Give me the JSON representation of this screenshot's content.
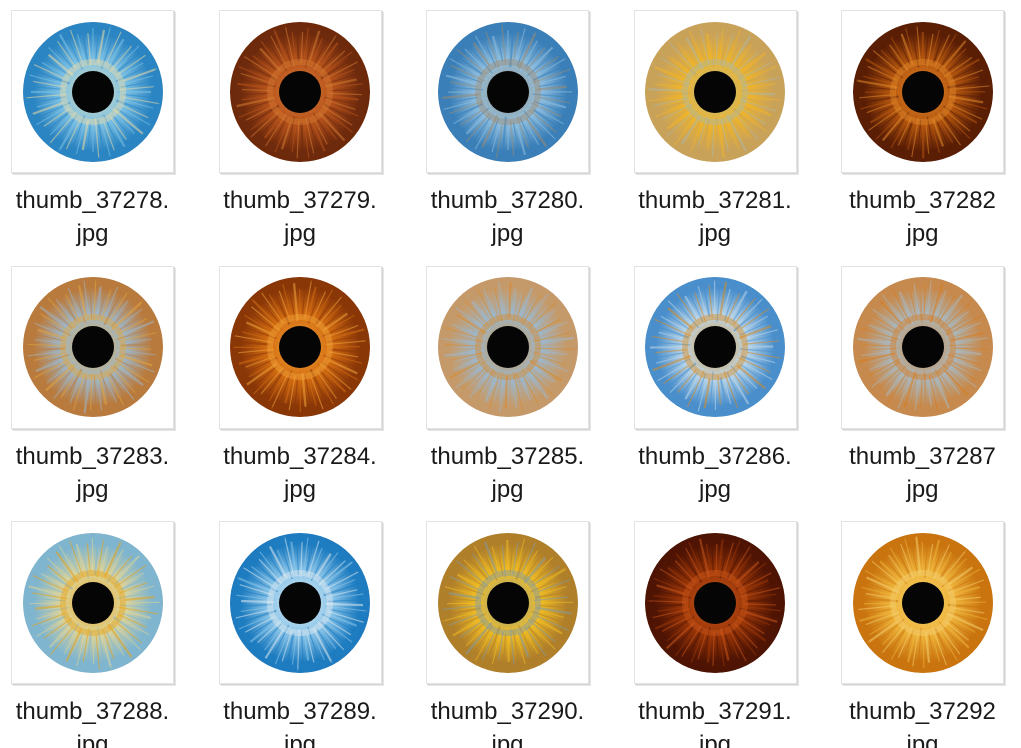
{
  "files": [
    {
      "line1": "thumb_37278.",
      "line2": "jpg",
      "icon": "blue-iris-icon",
      "colors": [
        "#2b85c2",
        "#7fc3e6",
        "#e8d9a6"
      ]
    },
    {
      "line1": "thumb_37279.",
      "line2": "jpg",
      "icon": "brown-iris-icon",
      "colors": [
        "#6e2a0c",
        "#b8531c",
        "#d27a33"
      ]
    },
    {
      "line1": "thumb_37280.",
      "line2": "jpg",
      "icon": "blue-iris-icon",
      "colors": [
        "#3a7fb8",
        "#8fbfe0",
        "#9d8a70"
      ]
    },
    {
      "line1": "thumb_37281.",
      "line2": "jpg",
      "icon": "amber-iris-icon",
      "colors": [
        "#c9a25a",
        "#f0b52a",
        "#a9b7a8"
      ]
    },
    {
      "line1": "thumb_37282",
      "line2": "jpg",
      "icon": "brown-iris-icon",
      "colors": [
        "#5a1e05",
        "#b5560f",
        "#e0892a"
      ]
    },
    {
      "line1": "thumb_37283.",
      "line2": "jpg",
      "icon": "hazel-iris-icon",
      "colors": [
        "#b97a3d",
        "#9fb7c9",
        "#e3a43a"
      ]
    },
    {
      "line1": "thumb_37284.",
      "line2": "jpg",
      "icon": "brown-iris-icon",
      "colors": [
        "#8a3708",
        "#d46d12",
        "#f0a43a"
      ]
    },
    {
      "line1": "thumb_37285.",
      "line2": "jpg",
      "icon": "hazel-iris-icon",
      "colors": [
        "#c59a6a",
        "#9bb8cf",
        "#d98a2a"
      ]
    },
    {
      "line1": "thumb_37286.",
      "line2": "jpg",
      "icon": "blue-iris-icon",
      "colors": [
        "#4a8fcc",
        "#bcd7ea",
        "#d68b24"
      ]
    },
    {
      "line1": "thumb_37287",
      "line2": "jpg",
      "icon": "hazel-iris-icon",
      "colors": [
        "#c68a4e",
        "#a9b8bf",
        "#d97b1e"
      ]
    },
    {
      "line1": "thumb_37288.",
      "line2": "jpg",
      "icon": "hazel-iris-icon",
      "colors": [
        "#7fb5cf",
        "#ddd49a",
        "#e5a21a"
      ]
    },
    {
      "line1": "thumb_37289.",
      "line2": "jpg",
      "icon": "blue-iris-icon",
      "colors": [
        "#1e7cc0",
        "#8cc6ea",
        "#dfe9ef"
      ]
    },
    {
      "line1": "thumb_37290.",
      "line2": "jpg",
      "icon": "amber-iris-icon",
      "colors": [
        "#b07f2a",
        "#f1bd24",
        "#7f9aa6"
      ]
    },
    {
      "line1": "thumb_37291.",
      "line2": "jpg",
      "icon": "brown-iris-icon",
      "colors": [
        "#4f1403",
        "#9a3608",
        "#c9561b"
      ]
    },
    {
      "line1": "thumb_37292",
      "line2": "jpg",
      "icon": "amber-iris-icon",
      "colors": [
        "#c9740f",
        "#efb43a",
        "#f4cf70"
      ]
    }
  ]
}
